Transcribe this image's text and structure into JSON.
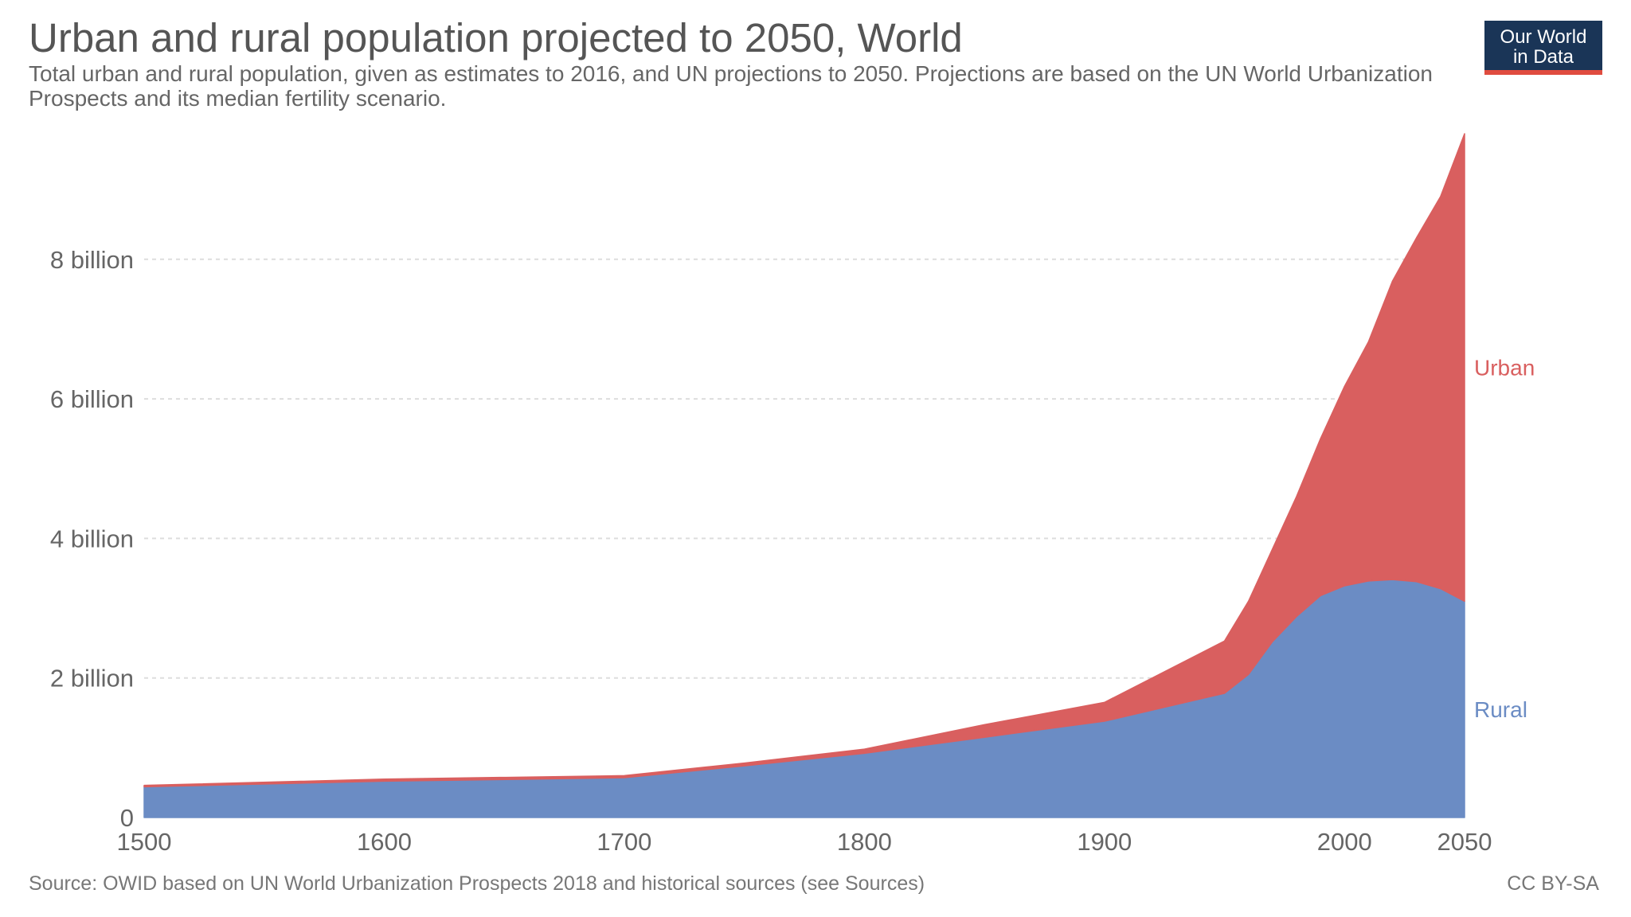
{
  "header": {
    "title": "Urban and rural population projected to 2050, World",
    "subtitle": "Total urban and rural population, given as estimates to 2016, and UN projections to 2050. Projections are based on the UN World Urbanization Prospects and its median fertility scenario."
  },
  "logo": {
    "line1": "Our World",
    "line2": "in Data"
  },
  "footer": {
    "source": "Source: OWID based on UN World Urbanization Prospects 2018 and historical sources (see Sources)",
    "license": "CC BY-SA"
  },
  "colors": {
    "urban": "#d95f5f",
    "rural": "#6b8cc4",
    "logo_bg": "#1a3557",
    "logo_accent": "#e04c3f",
    "grid": "#dddddd"
  },
  "chart_data": {
    "type": "area",
    "stacked": true,
    "x": [
      1500,
      1600,
      1700,
      1750,
      1800,
      1850,
      1900,
      1950,
      1960,
      1970,
      1980,
      1990,
      2000,
      2010,
      2020,
      2030,
      2040,
      2050
    ],
    "xlim": [
      1500,
      2050
    ],
    "ylim": [
      0,
      9.8
    ],
    "y_unit": "billion",
    "x_ticks": [
      1500,
      1600,
      1700,
      1800,
      1900,
      2000,
      2050
    ],
    "y_ticks": [
      {
        "value": 0,
        "label": "0"
      },
      {
        "value": 2,
        "label": "2 billion"
      },
      {
        "value": 4,
        "label": "4 billion"
      },
      {
        "value": 6,
        "label": "6 billion"
      },
      {
        "value": 8,
        "label": "8 billion"
      }
    ],
    "grid": true,
    "series": [
      {
        "name": "Rural",
        "color": "#6b8cc4",
        "values": [
          0.44,
          0.52,
          0.57,
          0.74,
          0.92,
          1.15,
          1.38,
          1.78,
          2.05,
          2.52,
          2.88,
          3.18,
          3.32,
          3.39,
          3.41,
          3.38,
          3.28,
          3.1
        ]
      },
      {
        "name": "Urban",
        "color": "#d95f5f",
        "values": [
          0.02,
          0.03,
          0.03,
          0.04,
          0.06,
          0.18,
          0.27,
          0.75,
          1.05,
          1.33,
          1.72,
          2.25,
          2.86,
          3.43,
          4.28,
          4.93,
          5.62,
          6.7
        ]
      }
    ]
  }
}
